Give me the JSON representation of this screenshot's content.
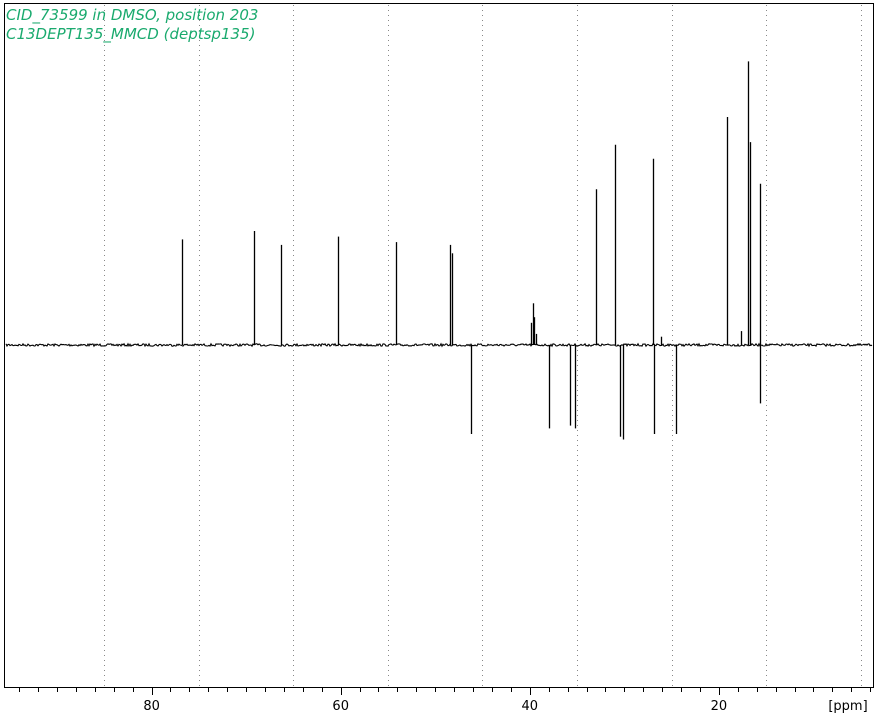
{
  "chart_data": {
    "type": "line",
    "title_lines": [
      "CID_73599 in DMSO, position 203",
      "C13DEPT135_MMCD (deptsp135)"
    ],
    "title_color": "#1aaa6e",
    "xlabel": "[ppm]",
    "x_reversed": true,
    "xlim": [
      95.5,
      3.7
    ],
    "ylim": [
      -100,
      100
    ],
    "x_ticks": [
      80,
      60,
      40,
      20
    ],
    "x_minor_step": 2,
    "grid": "vertical dotted every 10 ppm",
    "grid_lines": [
      85,
      75,
      65,
      55,
      45,
      35,
      25,
      15,
      5
    ],
    "peaks": [
      {
        "x": 76.8,
        "y": 38
      },
      {
        "x": 69.2,
        "y": 41
      },
      {
        "x": 66.3,
        "y": 36
      },
      {
        "x": 60.3,
        "y": 39
      },
      {
        "x": 54.2,
        "y": 37
      },
      {
        "x": 48.4,
        "y": 36
      },
      {
        "x": 48.2,
        "y": 33
      },
      {
        "x": 46.2,
        "y": -32
      },
      {
        "x": 39.9,
        "y": 8
      },
      {
        "x": 39.7,
        "y": 15
      },
      {
        "x": 39.5,
        "y": 10
      },
      {
        "x": 39.3,
        "y": 4
      },
      {
        "x": 38.0,
        "y": -30
      },
      {
        "x": 35.7,
        "y": -29
      },
      {
        "x": 35.2,
        "y": -30
      },
      {
        "x": 33.0,
        "y": 56
      },
      {
        "x": 31.0,
        "y": 72
      },
      {
        "x": 30.5,
        "y": -33
      },
      {
        "x": 30.1,
        "y": -34
      },
      {
        "x": 27.0,
        "y": 67
      },
      {
        "x": 26.9,
        "y": -32
      },
      {
        "x": 26.1,
        "y": 3
      },
      {
        "x": 24.5,
        "y": -32
      },
      {
        "x": 19.1,
        "y": 82
      },
      {
        "x": 17.7,
        "y": 5
      },
      {
        "x": 16.9,
        "y": 102
      },
      {
        "x": 16.7,
        "y": 73
      },
      {
        "x": 15.6,
        "y": 58
      },
      {
        "x": 15.6,
        "y": -21
      }
    ]
  }
}
